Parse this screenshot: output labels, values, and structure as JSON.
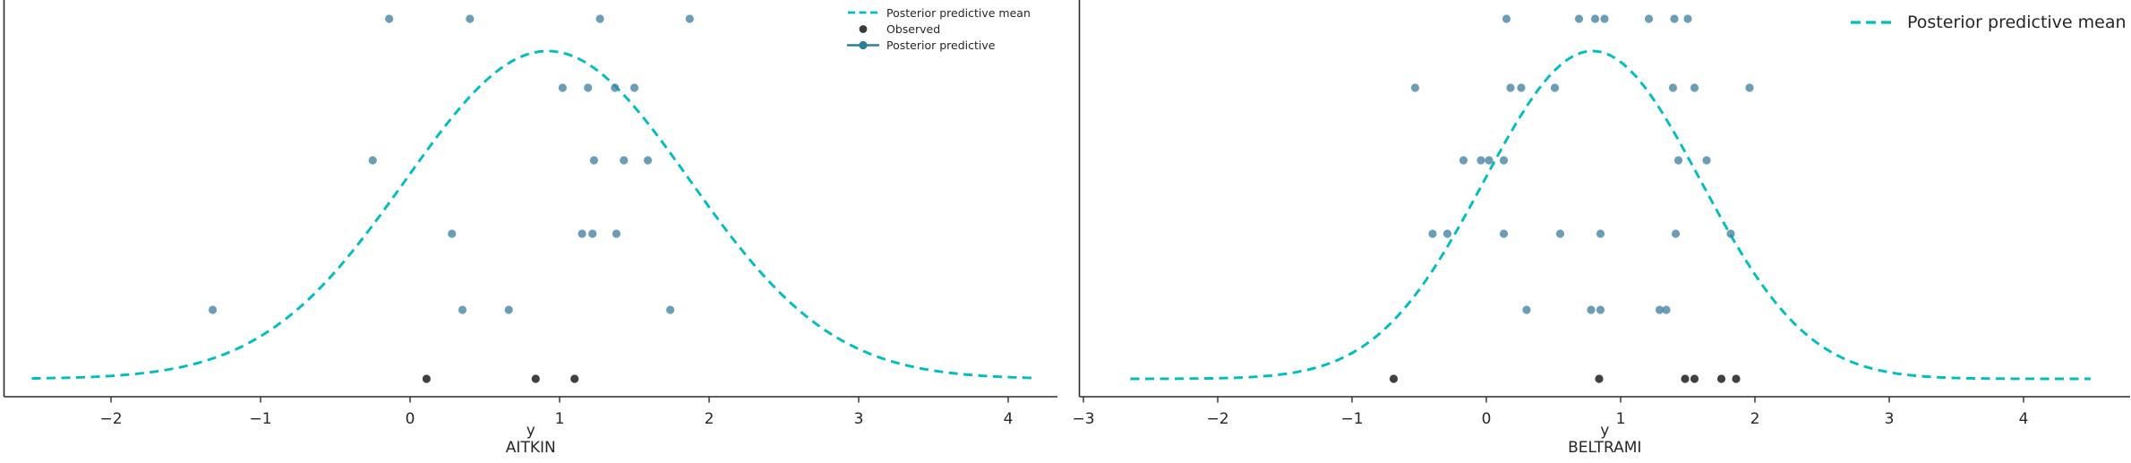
{
  "figure_title": "",
  "colors": {
    "posterior_predictive_mean": "#00bdbf",
    "posterior_predictive_dot": "#4381a3",
    "observed_dot": "#2b2b2b",
    "spine": "#2b2b2b",
    "text": "#262626",
    "background": "#ffffff"
  },
  "chart_data": [
    {
      "type": "scatter",
      "panel": "AITKIN",
      "xlabel": "y",
      "xlabel_lines": [
        "y",
        "AITKIN"
      ],
      "x_ticks": [
        -2,
        -1,
        0,
        1,
        2,
        3,
        4
      ],
      "xlim": [
        -2.72,
        4.33
      ],
      "grid": false,
      "spines": "left and bottom only",
      "legend_position": "upper right inside axes",
      "legend": [
        {
          "label": "Posterior predictive mean",
          "marker": "dashed-line",
          "color": "#00bdbf"
        },
        {
          "label": "Observed",
          "marker": "dot",
          "color": "#3a3a3a"
        },
        {
          "label": "Posterior predictive",
          "marker": "line-dot",
          "color": "#2a7f9e"
        }
      ],
      "posterior_predictive_mean_curve": {
        "shape": "gaussian_kde",
        "components": [
          {
            "mean": 0.92,
            "sigma": 0.95,
            "weight": 1
          }
        ],
        "x_range": [
          -2.53,
          4.17
        ]
      },
      "posterior_predictive_rows": [
        [
          -0.14,
          0.4,
          1.27,
          1.87
        ],
        [
          1.02,
          1.19,
          1.37,
          1.5
        ],
        [
          -0.25,
          1.23,
          1.43,
          1.59
        ],
        [
          0.28,
          1.15,
          1.22,
          1.38
        ],
        [
          -1.32,
          0.35,
          0.66,
          1.74
        ]
      ],
      "observed": [
        0.11,
        0.84,
        1.1
      ]
    },
    {
      "type": "scatter",
      "panel": "BELTRAMI",
      "xlabel": "y",
      "xlabel_lines": [
        "y",
        "BELTRAMI"
      ],
      "x_ticks": [
        -3,
        -2,
        -1,
        0,
        1,
        2,
        3,
        4
      ],
      "xlim": [
        -3.03,
        4.8
      ],
      "grid": false,
      "spines": "left and bottom only",
      "legend_position": "upper right outside plot area",
      "legend": [
        {
          "label": "Posterior predictive mean",
          "marker": "dashed-line",
          "color": "#00bdbf"
        }
      ],
      "posterior_predictive_mean_curve": {
        "shape": "gaussian_kde_mixture",
        "components": [
          {
            "mean": 0.48,
            "sigma": 0.73,
            "weight": 0.5
          },
          {
            "mean": 1.1,
            "sigma": 0.73,
            "weight": 0.5
          }
        ],
        "x_range": [
          -2.65,
          4.5
        ]
      },
      "posterior_predictive_rows": [
        [
          0.15,
          0.69,
          0.81,
          0.88,
          1.21,
          1.4,
          1.5
        ],
        [
          -0.53,
          0.18,
          0.26,
          0.51,
          1.39,
          1.55,
          1.96
        ],
        [
          -0.17,
          -0.04,
          0.02,
          0.13,
          1.43,
          1.64
        ],
        [
          -0.4,
          -0.29,
          0.13,
          0.55,
          0.85,
          1.41,
          1.82
        ],
        [
          0.3,
          0.78,
          0.85,
          1.29,
          1.34
        ]
      ],
      "observed": [
        -0.69,
        0.84,
        1.48,
        1.55,
        1.75,
        1.86
      ]
    }
  ]
}
